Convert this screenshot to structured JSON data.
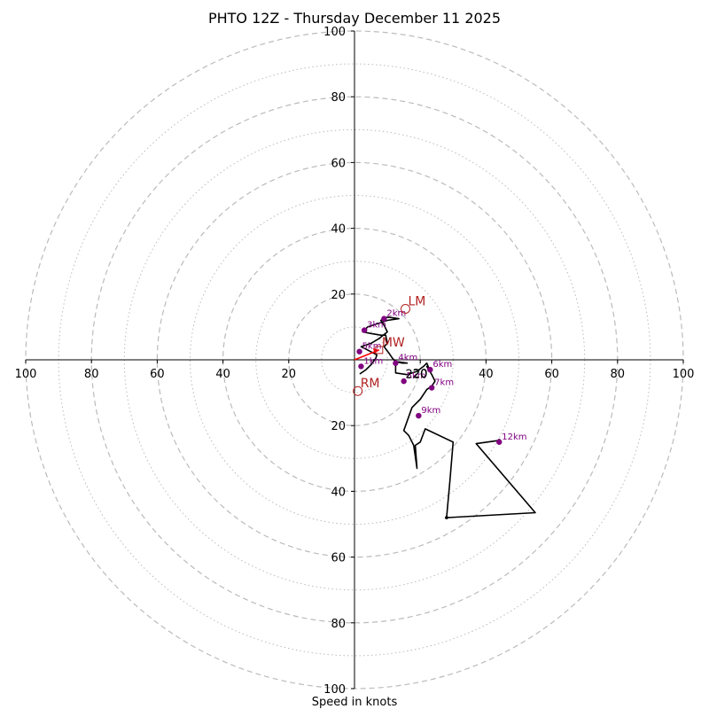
{
  "chart_data": {
    "type": "hodograph",
    "title": "PHTO 12Z - Thursday December 11 2025",
    "xlabel": "Speed in knots",
    "units": "knots",
    "range": 100,
    "ring_major": [
      20,
      40,
      60,
      80,
      100
    ],
    "ring_minor": [
      10,
      30,
      50,
      70,
      90
    ],
    "axis_ticks": [
      20,
      40,
      60,
      80,
      100
    ],
    "colors": {
      "trace": "#000000",
      "height_marker": "#800080",
      "motion": "#b22222",
      "vector": "#ff0000",
      "grid": "#bbbbbb"
    },
    "hodograph": [
      [
        1.6,
        -4.3
      ],
      [
        3.5,
        -3.0
      ],
      [
        5.0,
        -1.5
      ],
      [
        6.5,
        0.5
      ],
      [
        6.8,
        1.5
      ],
      [
        4.0,
        3.0
      ],
      [
        2.0,
        4.0
      ],
      [
        5.0,
        5.0
      ],
      [
        7.5,
        6.5
      ],
      [
        10.0,
        8.5
      ],
      [
        9.0,
        10.5
      ],
      [
        8.0,
        12.0
      ],
      [
        10.0,
        13.0
      ],
      [
        13.5,
        12.5
      ],
      [
        10.0,
        12.0
      ],
      [
        4.0,
        10.0
      ],
      [
        2.5,
        8.5
      ],
      [
        5.0,
        8.0
      ],
      [
        8.0,
        7.5
      ],
      [
        9.5,
        7.5
      ],
      [
        10.0,
        5.0
      ],
      [
        9.0,
        4.0
      ],
      [
        10.5,
        2.0
      ],
      [
        11.5,
        0.5
      ],
      [
        12.5,
        -0.5
      ],
      [
        14.5,
        -1.0
      ],
      [
        16.0,
        -1.0
      ],
      [
        12.5,
        -0.5
      ],
      [
        12.5,
        -4.0
      ],
      [
        16.0,
        -4.5
      ],
      [
        19.0,
        -3.5
      ],
      [
        21.0,
        -2.0
      ],
      [
        22.0,
        -1.0
      ],
      [
        23.0,
        -3.5
      ],
      [
        22.5,
        -3.0
      ],
      [
        22.0,
        -2.0
      ],
      [
        23.5,
        -4.5
      ],
      [
        24.5,
        -6.5
      ],
      [
        23.5,
        -8.0
      ],
      [
        22.0,
        -9.0
      ],
      [
        20.0,
        -12.0
      ],
      [
        17.5,
        -14.5
      ],
      [
        15.0,
        -21.5
      ],
      [
        16.5,
        -23.0
      ],
      [
        18.0,
        -26.0
      ],
      [
        19.0,
        -33.0
      ],
      [
        18.5,
        -26.0
      ],
      [
        20.0,
        -25.0
      ],
      [
        21.5,
        -21.0
      ],
      [
        30.0,
        -25.0
      ],
      [
        29.0,
        -37.0
      ],
      [
        28.0,
        -48.0
      ],
      [
        55.0,
        -46.5
      ],
      [
        37.0,
        -25.5
      ],
      [
        44.0,
        -24.5
      ]
    ],
    "height_markers": [
      {
        "label": "2km",
        "u": 9.0,
        "v": 12.5
      },
      {
        "label": "3km",
        "u": 3.0,
        "v": 9.0
      },
      {
        "label": "5km",
        "u": 1.5,
        "v": 2.5
      },
      {
        "label": "1km",
        "u": 2.0,
        "v": -2.0
      },
      {
        "label": "4km",
        "u": 12.5,
        "v": -1.0
      },
      {
        "label": "5km",
        "u": 15.0,
        "v": -6.5
      },
      {
        "label": "6km",
        "u": 23.0,
        "v": -3.0
      },
      {
        "label": "7km",
        "u": 23.5,
        "v": -8.5
      },
      {
        "label": "9km",
        "u": 19.5,
        "v": -17.0
      },
      {
        "label": "12km",
        "u": 44.0,
        "v": -25.0
      }
    ],
    "storm_motion": [
      {
        "label": "LM",
        "u": 15.5,
        "v": 15.5
      },
      {
        "label": "MW",
        "u": 7.5,
        "v": 3.0
      },
      {
        "label": "RM",
        "u": 1.0,
        "v": -9.5
      }
    ],
    "center_label": "220"
  }
}
